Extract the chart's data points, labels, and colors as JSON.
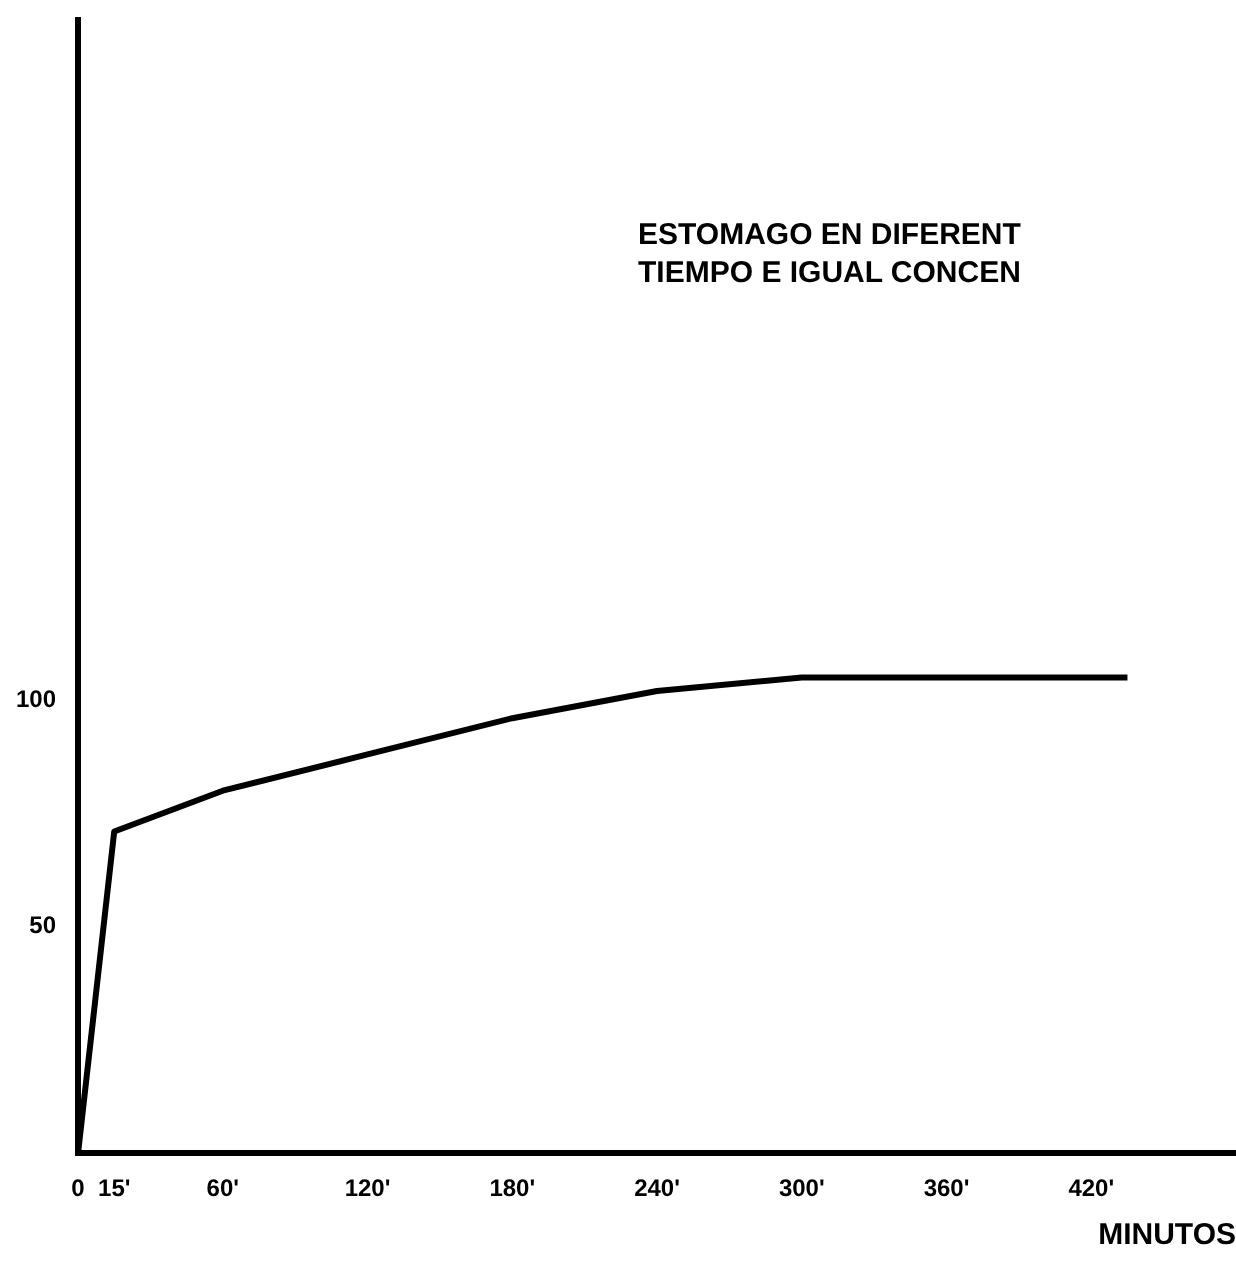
{
  "chart_data": {
    "type": "line",
    "title": "ESTOMAGO EN DIFERENT\nTIEMPO E IGUAL CONCEN",
    "xlabel": "MINUTOS",
    "x": [
      0,
      15,
      60,
      120,
      180,
      240,
      300,
      360,
      420,
      435
    ],
    "series": [
      {
        "color": "#000000",
        "values": [
          0,
          71,
          80,
          88,
          96,
          102,
          105,
          105,
          105,
          105
        ]
      }
    ],
    "xlim": [
      0,
      480
    ],
    "xticks": [
      0,
      {
        "value": 15,
        "label": "15'"
      },
      {
        "value": 60,
        "label": "60'"
      },
      {
        "value": 120,
        "label": "120'"
      },
      {
        "value": 180,
        "label": "180'"
      },
      {
        "value": 240,
        "label": "240'"
      },
      {
        "value": 300,
        "label": "300'"
      },
      {
        "value": 360,
        "label": "360'"
      },
      {
        "value": 420,
        "label": "420'"
      }
    ],
    "ylim": [
      0,
      250
    ],
    "yticks": [
      50,
      100
    ],
    "grid": false,
    "legend": false,
    "marker": "none",
    "line_style": "solid"
  }
}
